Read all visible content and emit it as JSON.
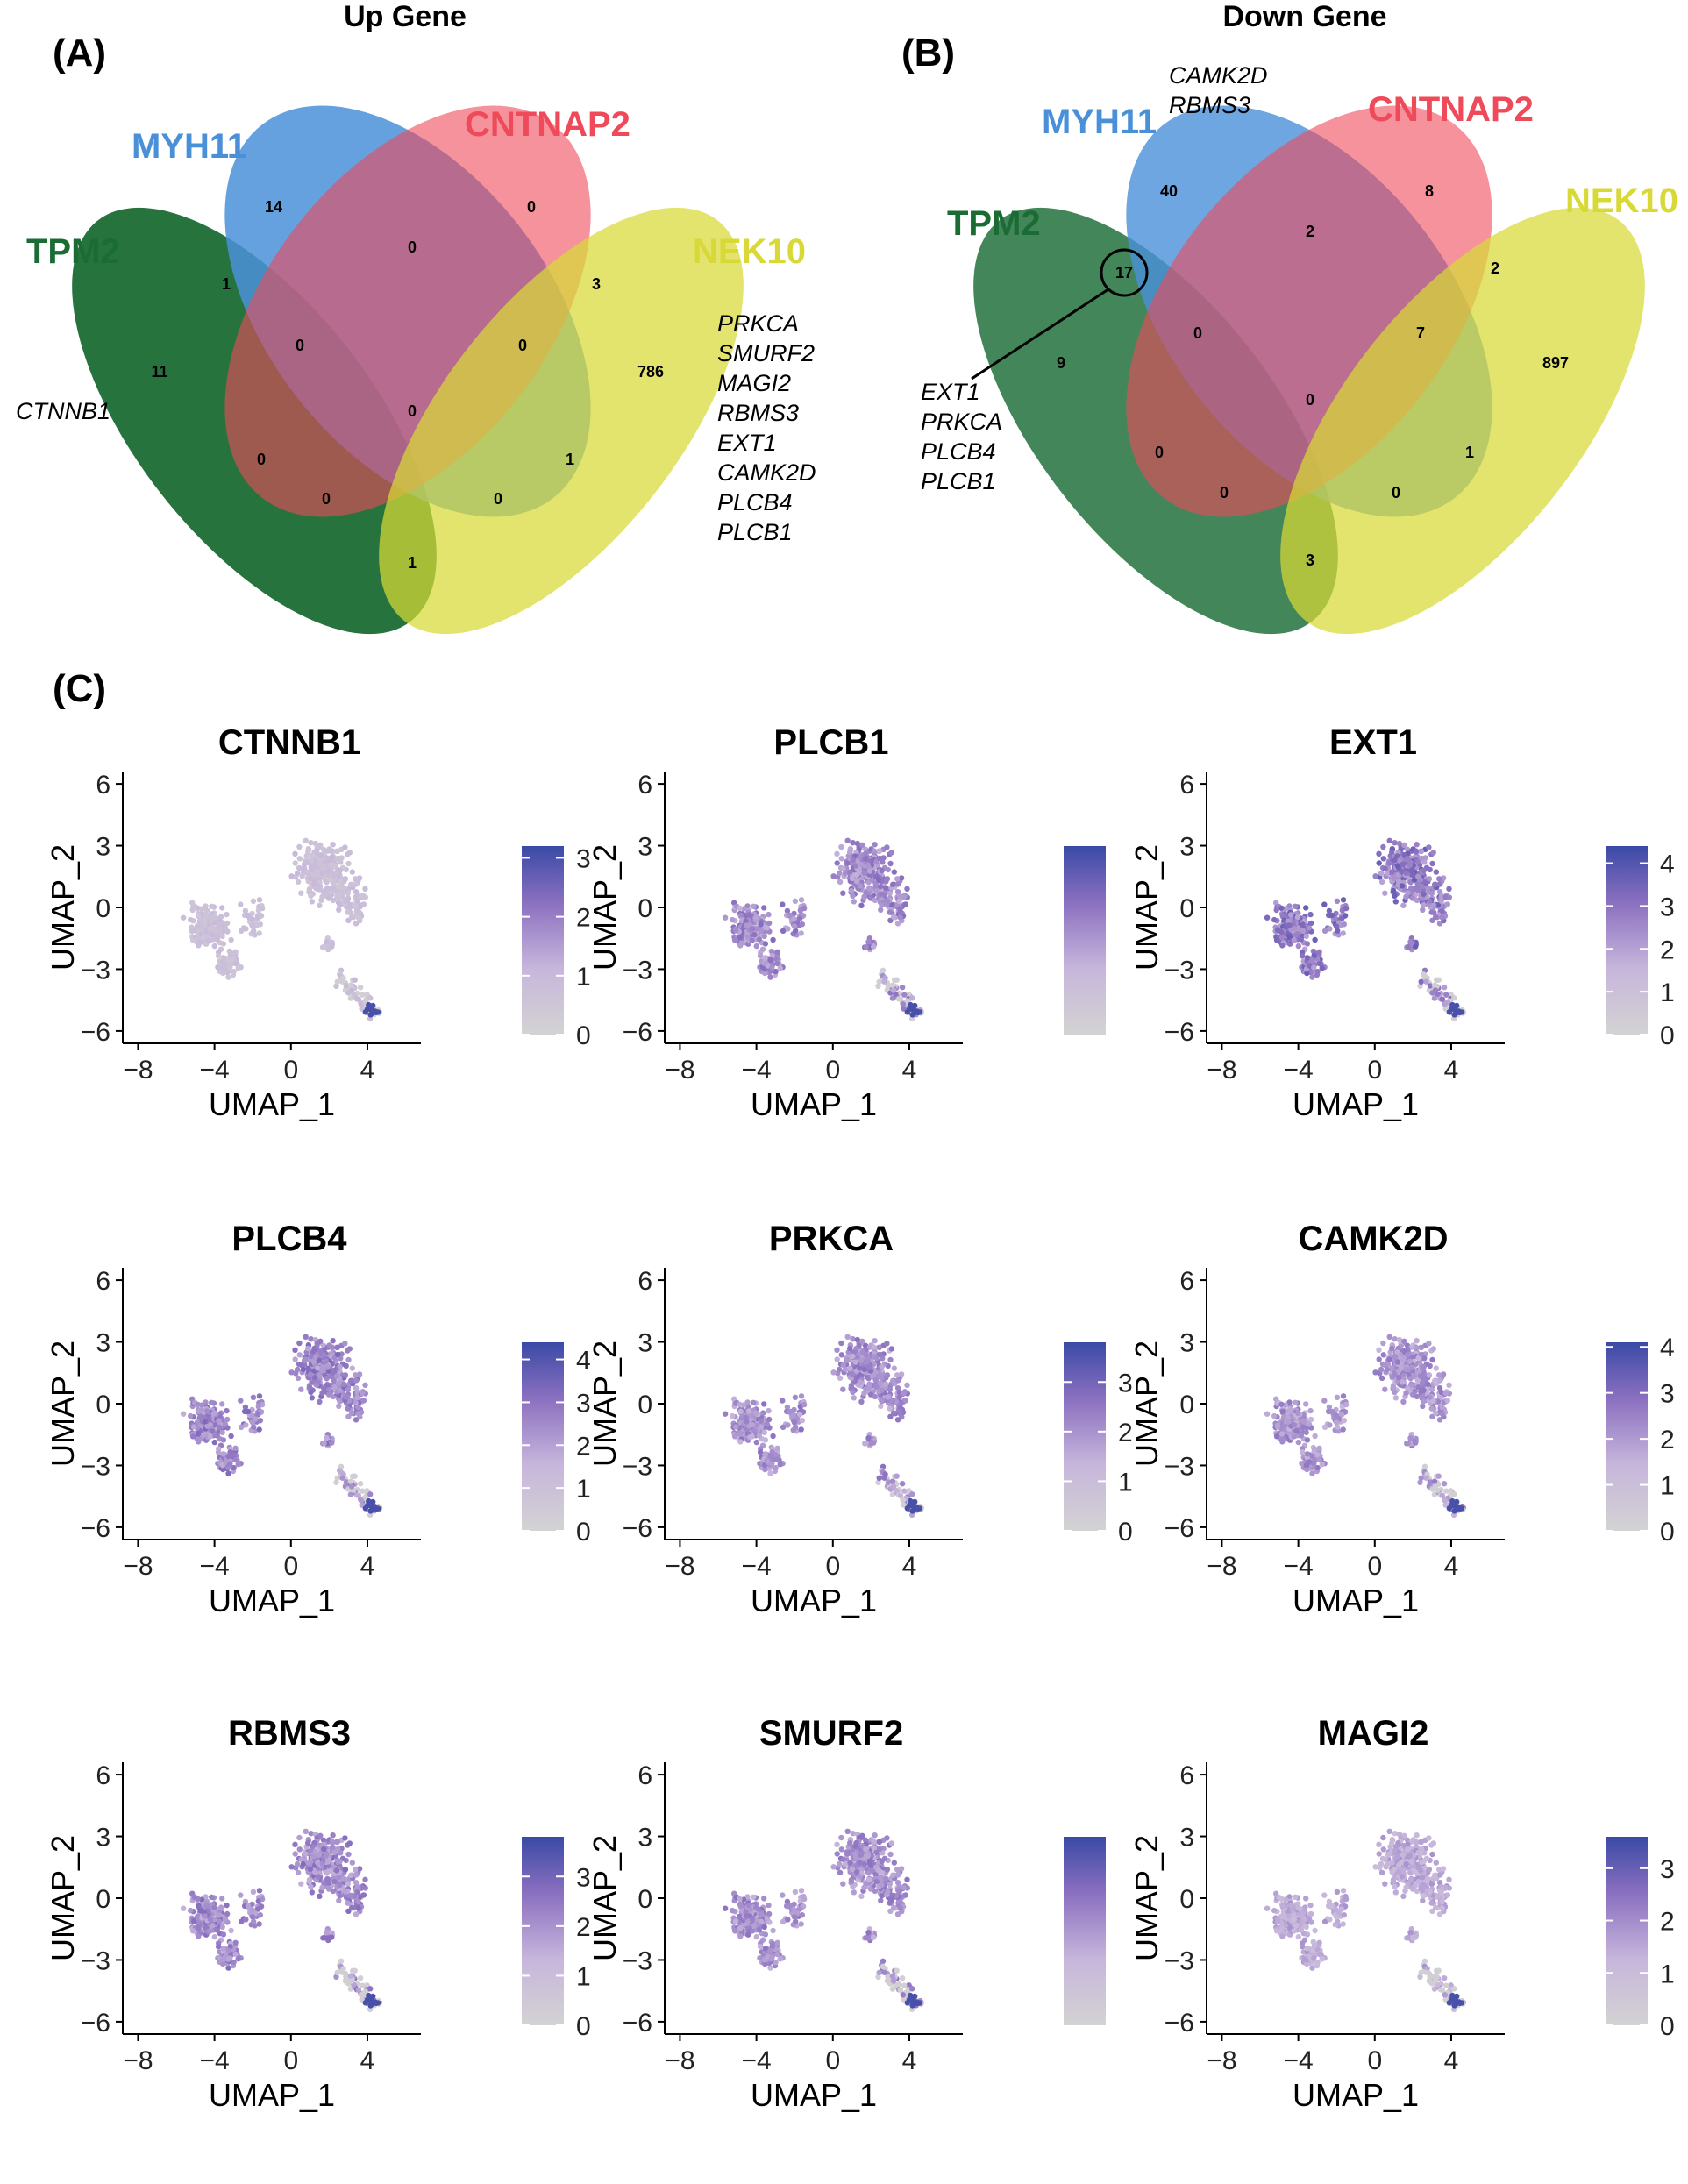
{
  "panels": {
    "a_label": "(A)",
    "b_label": "(B)",
    "c_label": "(C)"
  },
  "colors": {
    "tpm2": "#1a6b34",
    "myh11": "#4a90d9",
    "cntnap2": "#ee4a5a",
    "nek10": "#d8d936",
    "low": "#d3d3d3",
    "high": "#3a4aa6"
  },
  "chart_data": [
    {
      "type": "venn",
      "title": "Up Gene",
      "sets": [
        "TPM2",
        "MYH11",
        "CNTNAP2",
        "NEK10"
      ],
      "regions": {
        "MYH11_only": 14,
        "CNTNAP2_only": 0,
        "TPM2_only": 11,
        "NEK10_only": 786,
        "TPM2_MYH11": 1,
        "MYH11_CNTNAP2": 0,
        "CNTNAP2_NEK10": 3,
        "TPM2_MYH11_CNTNAP2": 0,
        "MYH11_CNTNAP2_NEK10": 0,
        "ALL": 0,
        "TPM2_CNTNAP2": 0,
        "MYH11_NEK10": 1,
        "TPM2_CNTNAP2_NEK10": 0,
        "TPM2_MYH11_NEK10": 0,
        "TPM2_NEK10": 1
      },
      "annotations": {
        "tpm2_genes": [
          "CTNNB1"
        ],
        "nek10_genes": [
          "PRKCA",
          "SMURF2",
          "MAGI2",
          "RBMS3",
          "EXT1",
          "CAMK2D",
          "PLCB4",
          "PLCB1"
        ]
      }
    },
    {
      "type": "venn",
      "title": "Down Gene",
      "sets": [
        "TPM2",
        "MYH11",
        "CNTNAP2",
        "NEK10"
      ],
      "regions": {
        "MYH11_only": 40,
        "CNTNAP2_only": 8,
        "TPM2_only": 9,
        "NEK10_only": 897,
        "TPM2_MYH11": 17,
        "MYH11_CNTNAP2": 2,
        "CNTNAP2_NEK10": 2,
        "TPM2_MYH11_CNTNAP2": 0,
        "MYH11_CNTNAP2_NEK10": 7,
        "ALL": 0,
        "TPM2_CNTNAP2": 0,
        "MYH11_NEK10": 1,
        "TPM2_CNTNAP2_NEK10": 0,
        "TPM2_MYH11_NEK10": 0,
        "TPM2_NEK10": 3
      },
      "annotations": {
        "myh11_genes": [
          "CAMK2D",
          "RBMS3"
        ],
        "circled_genes": [
          "EXT1",
          "PRKCA",
          "PLCB4",
          "PLCB1"
        ]
      }
    },
    {
      "type": "scatter",
      "subtype": "umap-feature-plot",
      "xlabel": "UMAP_1",
      "ylabel": "UMAP_2",
      "xticks": [
        -8,
        -4,
        0,
        4
      ],
      "yticks": [
        -6,
        -3,
        0,
        3,
        6
      ],
      "xlim": [
        -8.8,
        6.8
      ],
      "ylim": [
        -6.6,
        6.6
      ],
      "features": [
        {
          "gene": "CTNNB1",
          "legend_ticks": [
            0,
            1,
            2,
            3
          ],
          "max": 3.2,
          "level": 0.28
        },
        {
          "gene": "PLCB1",
          "legend_ticks": [],
          "max": 3.0,
          "level": 0.6
        },
        {
          "gene": "EXT1",
          "legend_ticks": [
            0,
            1,
            2,
            3,
            4
          ],
          "max": 4.4,
          "level": 0.68
        },
        {
          "gene": "PLCB4",
          "legend_ticks": [
            0,
            1,
            2,
            3,
            4
          ],
          "max": 4.4,
          "level": 0.62
        },
        {
          "gene": "PRKCA",
          "legend_ticks": [
            0,
            1,
            2,
            3
          ],
          "max": 3.8,
          "level": 0.58
        },
        {
          "gene": "CAMK2D",
          "legend_ticks": [
            0,
            1,
            2,
            3,
            4
          ],
          "max": 4.1,
          "level": 0.55
        },
        {
          "gene": "RBMS3",
          "legend_ticks": [
            0,
            1,
            2,
            3
          ],
          "max": 3.8,
          "level": 0.6
        },
        {
          "gene": "SMURF2",
          "legend_ticks": [],
          "max": 3.0,
          "level": 0.58
        },
        {
          "gene": "MAGI2",
          "legend_ticks": [
            0,
            1,
            2,
            3
          ],
          "max": 3.6,
          "level": 0.45
        }
      ]
    }
  ]
}
